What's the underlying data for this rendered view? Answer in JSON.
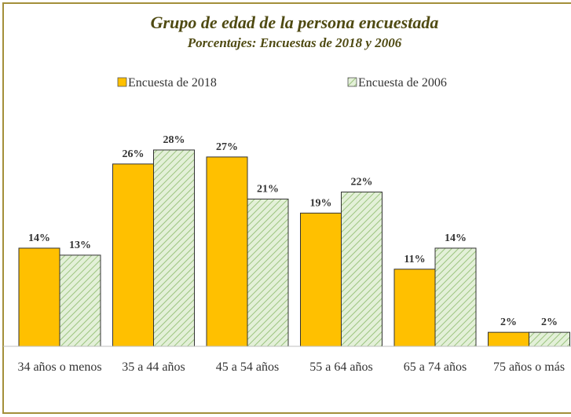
{
  "chart_data": {
    "type": "bar",
    "title": "Grupo de edad de la persona encuestada",
    "subtitle": "Porcentajes: Encuestas de 2018 y 2006",
    "categories": [
      "34 años o menos",
      "35 a 44 años",
      "45 a 54 años",
      "55 a 64 años",
      "65 a 74 años",
      "75 años o más"
    ],
    "series": [
      {
        "name": "Encuesta de 2018",
        "color": "#ffc000",
        "pattern": "solid",
        "values": [
          14,
          26,
          27,
          19,
          11,
          2
        ],
        "value_labels": [
          "14%",
          "26%",
          "27%",
          "19%",
          "11%",
          "2%"
        ]
      },
      {
        "name": "Encuesta de 2006",
        "color": "#e3f0d8",
        "pattern": "hatch",
        "values": [
          13,
          28,
          21,
          22,
          14,
          2
        ],
        "value_labels": [
          "13%",
          "28%",
          "21%",
          "22%",
          "14%",
          "2%"
        ]
      }
    ]
  }
}
